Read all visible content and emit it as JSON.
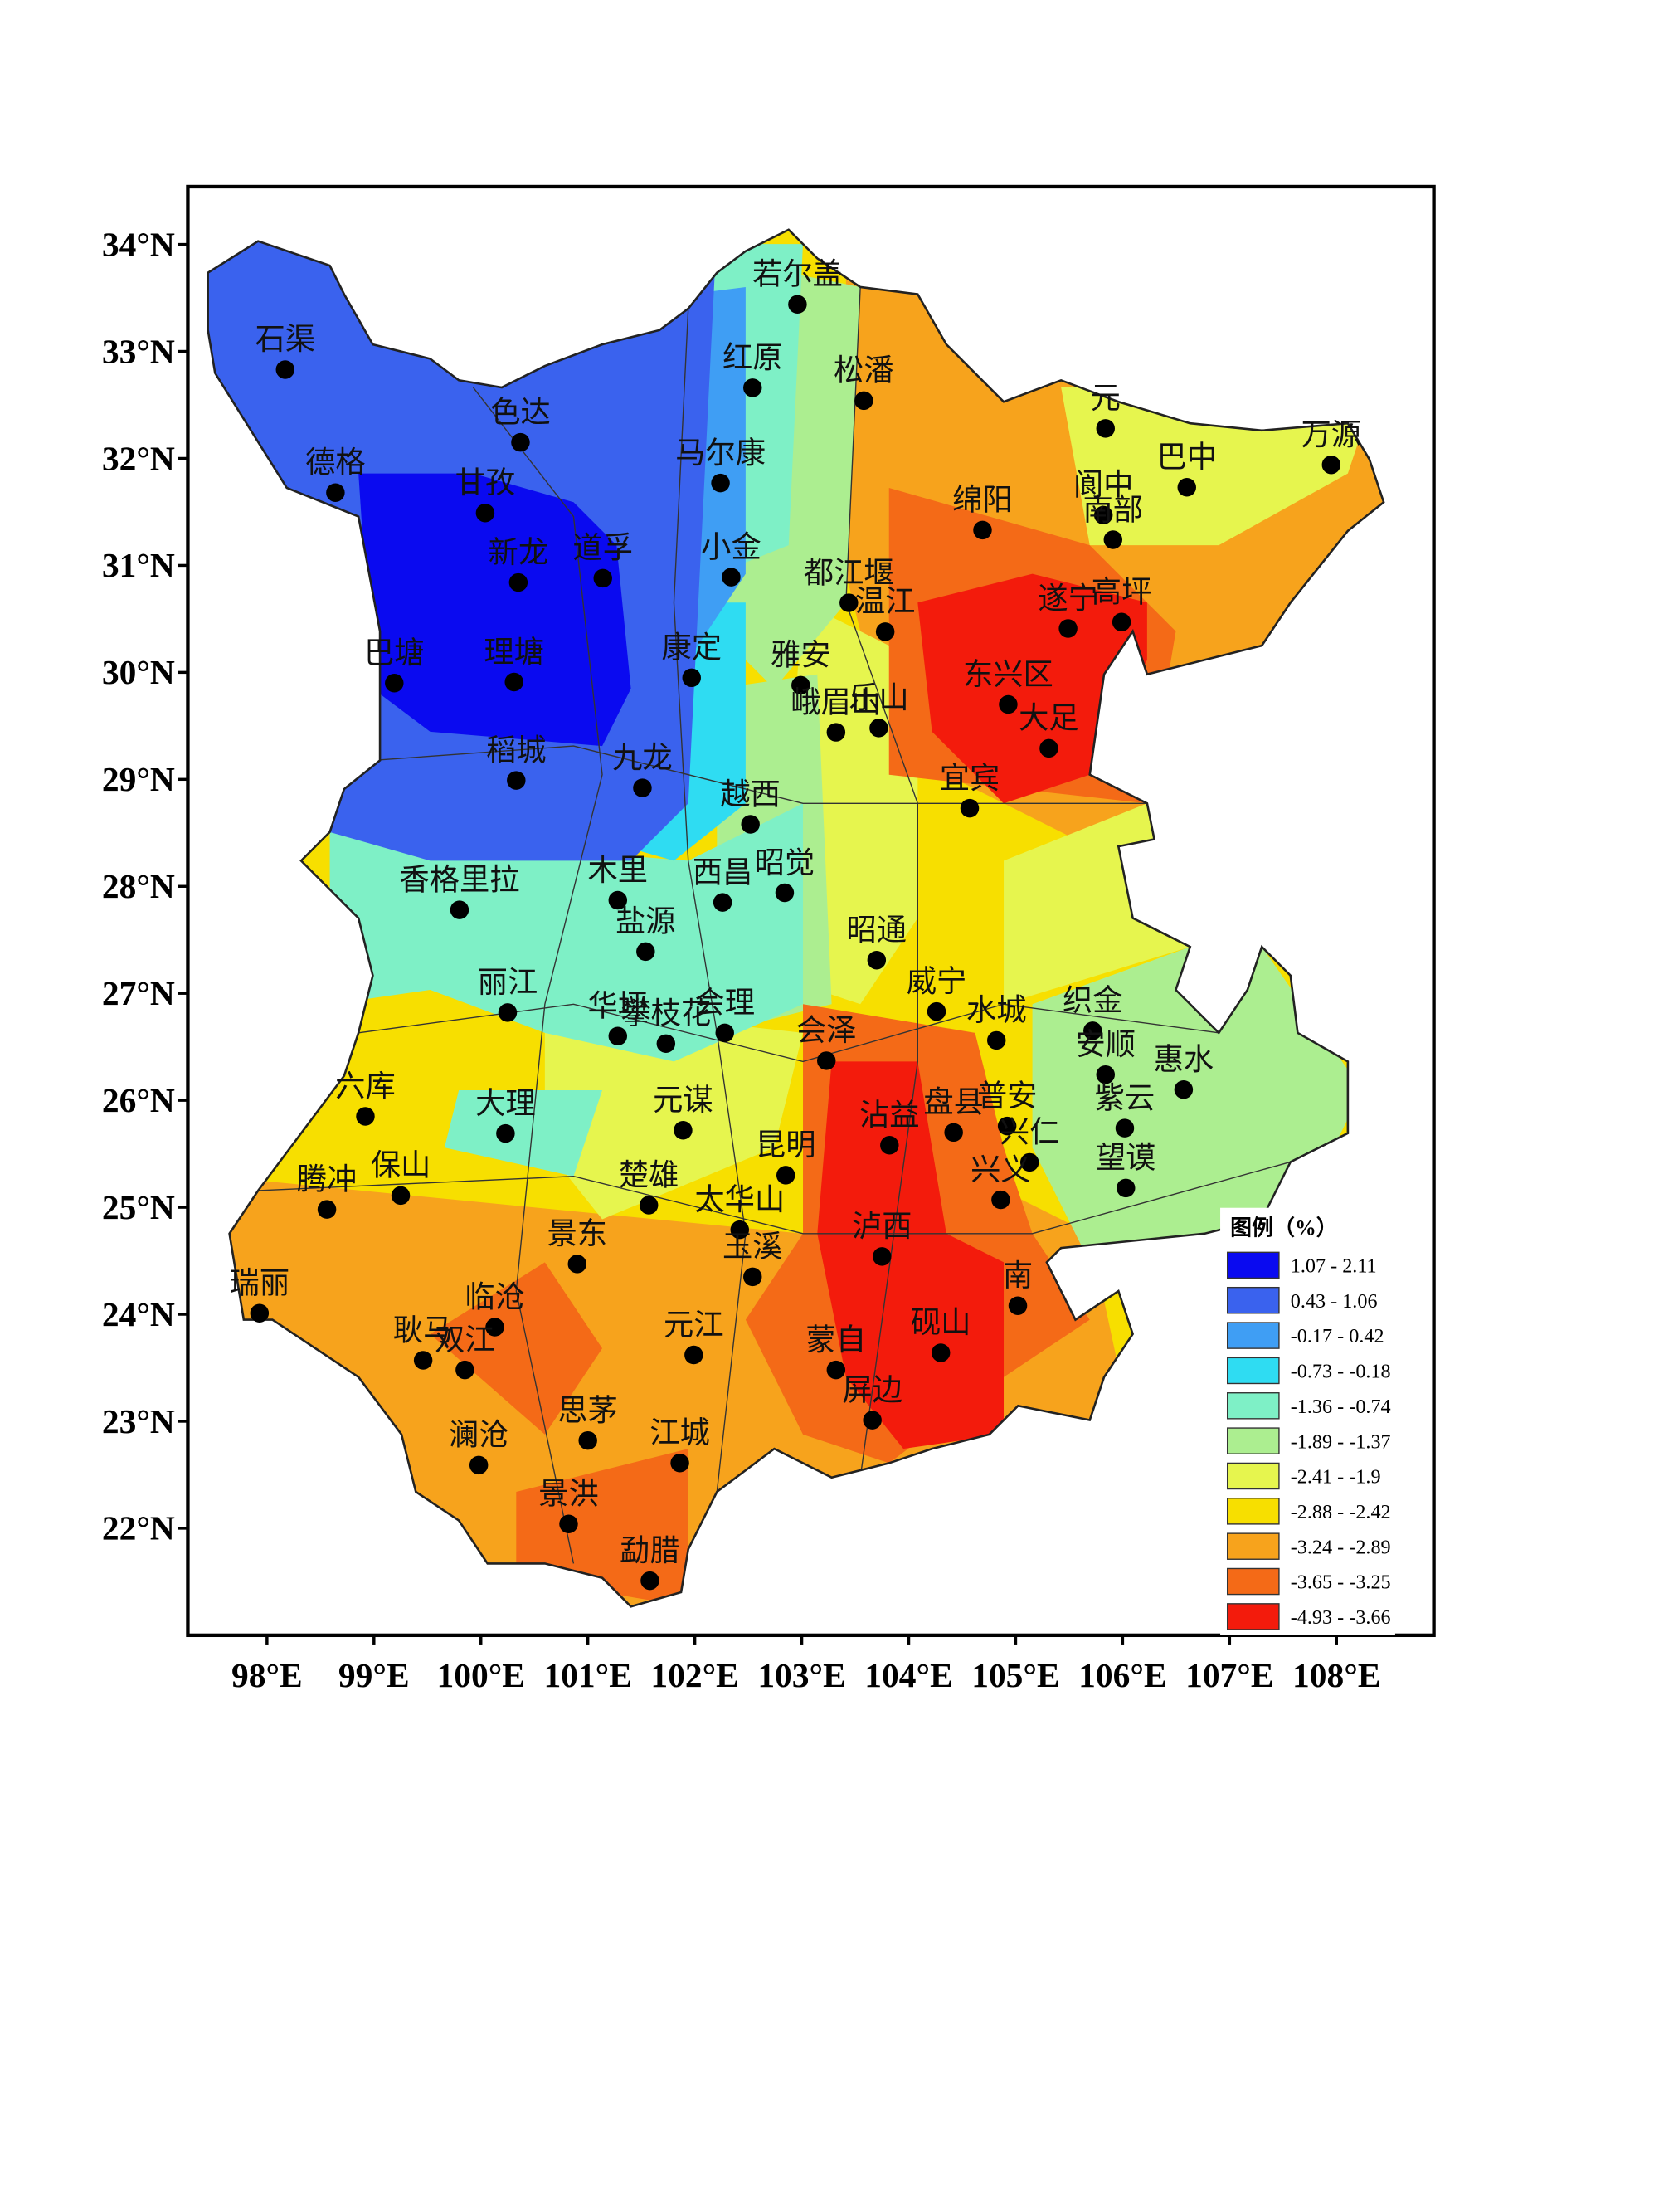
{
  "map": {
    "xlim": [
      97.26,
      108.91
    ],
    "ylim": [
      21.0,
      34.54
    ],
    "xticks": [
      {
        "value": 98,
        "label": "98°E"
      },
      {
        "value": 99,
        "label": "99°E"
      },
      {
        "value": 100,
        "label": "100°E"
      },
      {
        "value": 101,
        "label": "101°E"
      },
      {
        "value": 102,
        "label": "102°E"
      },
      {
        "value": 103,
        "label": "103°E"
      },
      {
        "value": 104,
        "label": "104°E"
      },
      {
        "value": 105,
        "label": "105°E"
      },
      {
        "value": 106,
        "label": "106°E"
      },
      {
        "value": 107,
        "label": "107°E"
      },
      {
        "value": 108,
        "label": "108°E"
      }
    ],
    "yticks": [
      {
        "value": 34,
        "label": "34°N"
      },
      {
        "value": 33,
        "label": "33°N"
      },
      {
        "value": 32,
        "label": "32°N"
      },
      {
        "value": 31,
        "label": "31°N"
      },
      {
        "value": 30,
        "label": "30°N"
      },
      {
        "value": 29,
        "label": "29°N"
      },
      {
        "value": 28,
        "label": "28°N"
      },
      {
        "value": 27,
        "label": "27°N"
      },
      {
        "value": 26,
        "label": "26°N"
      },
      {
        "value": 25,
        "label": "25°N"
      },
      {
        "value": 24,
        "label": "24°N"
      },
      {
        "value": 23,
        "label": "23°N"
      },
      {
        "value": 22,
        "label": "22°N"
      }
    ],
    "legend": {
      "title": "图例（%）",
      "items": [
        {
          "label": "1.07 - 2.11",
          "color": "#0a0af0"
        },
        {
          "label": "0.43 - 1.06",
          "color": "#3a62ee"
        },
        {
          "label": "-0.17 - 0.42",
          "color": "#3f9ef4"
        },
        {
          "label": "-0.73 - -0.18",
          "color": "#2fdcf2"
        },
        {
          "label": "-1.36 - -0.74",
          "color": "#7ef0c6"
        },
        {
          "label": "-1.89 - -1.37",
          "color": "#acee90"
        },
        {
          "label": "-2.41 - -1.9",
          "color": "#e6f54e"
        },
        {
          "label": "-2.88 - -2.42",
          "color": "#f7df00"
        },
        {
          "label": "-3.24 - -2.89",
          "color": "#f7a31c"
        },
        {
          "label": "-3.65 - -3.25",
          "color": "#f46a17"
        },
        {
          "label": "-4.93 - -3.66",
          "color": "#f31b0c"
        }
      ]
    },
    "stations": [
      {
        "name": "石渠",
        "lon": 98.17,
        "lat": 32.83
      },
      {
        "name": "色达",
        "lon": 100.37,
        "lat": 32.15
      },
      {
        "name": "德格",
        "lon": 98.64,
        "lat": 31.68
      },
      {
        "name": "甘孜",
        "lon": 100.04,
        "lat": 31.49
      },
      {
        "name": "新龙",
        "lon": 100.35,
        "lat": 30.84
      },
      {
        "name": "道孚",
        "lon": 101.14,
        "lat": 30.88
      },
      {
        "name": "巴塘",
        "lon": 99.19,
        "lat": 29.9
      },
      {
        "name": "理塘",
        "lon": 100.31,
        "lat": 29.91
      },
      {
        "name": "稻城",
        "lon": 100.33,
        "lat": 28.99
      },
      {
        "name": "九龙",
        "lon": 101.51,
        "lat": 28.92
      },
      {
        "name": "若尔盖",
        "lon": 102.96,
        "lat": 33.44
      },
      {
        "name": "红原",
        "lon": 102.54,
        "lat": 32.66
      },
      {
        "name": "松潘",
        "lon": 103.58,
        "lat": 32.54
      },
      {
        "name": "马尔康",
        "lon": 102.24,
        "lat": 31.77
      },
      {
        "name": "小金",
        "lon": 102.34,
        "lat": 30.89
      },
      {
        "name": "康定",
        "lon": 101.97,
        "lat": 29.95
      },
      {
        "name": "都江堰",
        "lon": 103.44,
        "lat": 30.65
      },
      {
        "name": "温江",
        "lon": 103.78,
        "lat": 30.38
      },
      {
        "name": "雅安",
        "lon": 102.99,
        "lat": 29.88
      },
      {
        "name": "峨眉山",
        "lon": 103.32,
        "lat": 29.44
      },
      {
        "name": "乐山",
        "lon": 103.72,
        "lat": 29.48
      },
      {
        "name": "绵阳",
        "lon": 104.69,
        "lat": 31.33
      },
      {
        "name": "遂宁",
        "lon": 105.49,
        "lat": 30.41
      },
      {
        "name": "高坪",
        "lon": 105.99,
        "lat": 30.47
      },
      {
        "name": "东兴区",
        "lon": 104.93,
        "lat": 29.7
      },
      {
        "name": "大足",
        "lon": 105.31,
        "lat": 29.29
      },
      {
        "name": "宜宾",
        "lon": 104.57,
        "lat": 28.73
      },
      {
        "name": "元",
        "lon": 105.84,
        "lat": 32.28
      },
      {
        "name": "阆中",
        "lon": 105.82,
        "lat": 31.47
      },
      {
        "name": "南部",
        "lon": 105.91,
        "lat": 31.24
      },
      {
        "name": "巴中",
        "lon": 106.6,
        "lat": 31.73
      },
      {
        "name": "万源",
        "lon": 107.95,
        "lat": 31.94
      },
      {
        "name": "越西",
        "lon": 102.52,
        "lat": 28.58
      },
      {
        "name": "西昌",
        "lon": 102.26,
        "lat": 27.85
      },
      {
        "name": "昭觉",
        "lon": 102.84,
        "lat": 27.94
      },
      {
        "name": "香格里拉",
        "lon": 99.8,
        "lat": 27.78
      },
      {
        "name": "木里",
        "lon": 101.28,
        "lat": 27.87
      },
      {
        "name": "盐源",
        "lon": 101.54,
        "lat": 27.39
      },
      {
        "name": "昭通",
        "lon": 103.7,
        "lat": 27.31
      },
      {
        "name": "威宁",
        "lon": 104.26,
        "lat": 26.83
      },
      {
        "name": "丽江",
        "lon": 100.25,
        "lat": 26.82
      },
      {
        "name": "华坪",
        "lon": 101.28,
        "lat": 26.6
      },
      {
        "name": "会理",
        "lon": 102.28,
        "lat": 26.63
      },
      {
        "name": "攀枝花",
        "lon": 101.73,
        "lat": 26.53
      },
      {
        "name": "会泽",
        "lon": 103.23,
        "lat": 26.37
      },
      {
        "name": "水城",
        "lon": 104.82,
        "lat": 26.56
      },
      {
        "name": "织金",
        "lon": 105.72,
        "lat": 26.65
      },
      {
        "name": "安顺",
        "lon": 105.84,
        "lat": 26.24
      },
      {
        "name": "惠水",
        "lon": 106.57,
        "lat": 26.1
      },
      {
        "name": "六库",
        "lon": 98.92,
        "lat": 25.85
      },
      {
        "name": "大理",
        "lon": 100.23,
        "lat": 25.69
      },
      {
        "name": "元谋",
        "lon": 101.89,
        "lat": 25.72
      },
      {
        "name": "沾益",
        "lon": 103.82,
        "lat": 25.58
      },
      {
        "name": "盘县",
        "lon": 104.42,
        "lat": 25.7
      },
      {
        "name": "普安",
        "lon": 104.92,
        "lat": 25.76
      },
      {
        "name": "兴仁",
        "lon": 105.13,
        "lat": 25.42
      },
      {
        "name": "紫云",
        "lon": 106.02,
        "lat": 25.74
      },
      {
        "name": "望谟",
        "lon": 106.03,
        "lat": 25.18
      },
      {
        "name": "兴义",
        "lon": 104.86,
        "lat": 25.07
      },
      {
        "name": "昆明",
        "lon": 102.85,
        "lat": 25.3
      },
      {
        "name": "腾冲",
        "lon": 98.56,
        "lat": 24.98
      },
      {
        "name": "保山",
        "lon": 99.25,
        "lat": 25.11
      },
      {
        "name": "楚雄",
        "lon": 101.57,
        "lat": 25.02
      },
      {
        "name": "太华山",
        "lon": 102.42,
        "lat": 24.79
      },
      {
        "name": "泸西",
        "lon": 103.75,
        "lat": 24.54
      },
      {
        "name": "玉溪",
        "lon": 102.54,
        "lat": 24.35
      },
      {
        "name": "南",
        "lon": 105.02,
        "lat": 24.08
      },
      {
        "name": "景东",
        "lon": 100.9,
        "lat": 24.47
      },
      {
        "name": "瑞丽",
        "lon": 97.93,
        "lat": 24.01
      },
      {
        "name": "临沧",
        "lon": 100.13,
        "lat": 23.88
      },
      {
        "name": "耿马",
        "lon": 99.46,
        "lat": 23.57
      },
      {
        "name": "双江",
        "lon": 99.85,
        "lat": 23.48
      },
      {
        "name": "元江",
        "lon": 101.99,
        "lat": 23.62
      },
      {
        "name": "蒙自",
        "lon": 103.32,
        "lat": 23.48
      },
      {
        "name": "砚山",
        "lon": 104.3,
        "lat": 23.64
      },
      {
        "name": "屏边",
        "lon": 103.66,
        "lat": 23.01
      },
      {
        "name": "思茅",
        "lon": 101.0,
        "lat": 22.82
      },
      {
        "name": "澜沧",
        "lon": 99.98,
        "lat": 22.59
      },
      {
        "name": "江城",
        "lon": 101.86,
        "lat": 22.61
      },
      {
        "name": "景洪",
        "lon": 100.82,
        "lat": 22.04
      },
      {
        "name": "勐腊",
        "lon": 101.58,
        "lat": 21.51
      }
    ]
  }
}
